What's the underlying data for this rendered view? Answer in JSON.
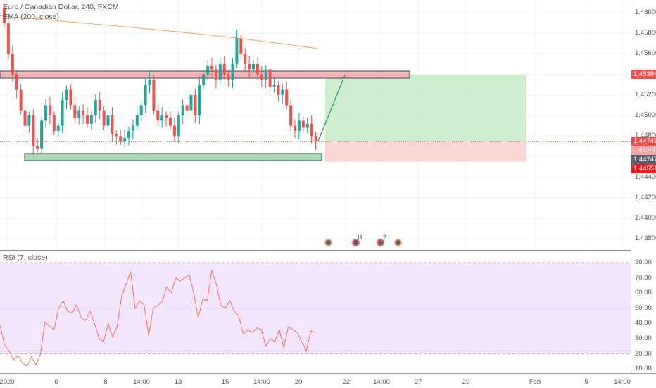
{
  "legend": {
    "title": "Euro / Canadian Dollar, 240, FXCM",
    "ema": "EMA (200, close)",
    "rsi": "RSI (7, close)"
  },
  "price_axis": [
    "1.46000",
    "1.45800",
    "1.45600",
    "1.45200",
    "1.45000",
    "1.44800",
    "1.44400",
    "1.44200",
    "1.44000",
    "1.43800"
  ],
  "price_tags": {
    "target": "1.45394",
    "last": "1.44749",
    "countdown": "49:44",
    "bid": "1.44747",
    "stop": "1.44551"
  },
  "rsi_axis": [
    "80.00",
    "70.00",
    "60.00",
    "50.00",
    "40.00",
    "30.00",
    "20.00",
    "10.00"
  ],
  "time_axis": [
    "2020",
    "6",
    "8",
    "14:00",
    "13",
    "15",
    "14:00",
    "20",
    "22",
    "14:00",
    "27",
    "29",
    "Feb",
    "5",
    "14:00"
  ],
  "events": [
    {
      "icon": "dividend-icon"
    },
    {
      "icon": "calendar-event-icon",
      "badge": "11"
    },
    {
      "icon": "earnings-icon",
      "badge": "2"
    },
    {
      "icon": "event-icon"
    }
  ],
  "colors": {
    "up": "#26a69a",
    "down": "#ef5350",
    "ema": "#f7a35c",
    "rsi": "#f7725c",
    "rsi_band": "#f3e5fd",
    "profit": "#c8ecc8",
    "loss": "#fcd0d0"
  },
  "chart_data": {
    "type": "candlestick",
    "symbol": "EURCAD",
    "interval": "240",
    "ylim": [
      1.437,
      1.461
    ],
    "closes": [
      1.459,
      1.456,
      1.454,
      1.4525,
      1.4505,
      1.449,
      1.45,
      1.447,
      1.4468,
      1.4495,
      1.451,
      1.45,
      1.4485,
      1.449,
      1.4515,
      1.4525,
      1.451,
      1.4498,
      1.4505,
      1.45,
      1.4492,
      1.45,
      1.4515,
      1.4505,
      1.449,
      1.45,
      1.4482,
      1.448,
      1.4475,
      1.4478,
      1.4485,
      1.449,
      1.45,
      1.451,
      1.453,
      1.4535,
      1.4505,
      1.4495,
      1.45,
      1.4498,
      1.449,
      1.448,
      1.45,
      1.451,
      1.4505,
      1.452,
      1.45,
      1.453,
      1.454,
      1.4548,
      1.4545,
      1.4535,
      1.455,
      1.454,
      1.4535,
      1.455,
      1.4575,
      1.456,
      1.455,
      1.4545,
      1.455,
      1.454,
      1.4535,
      1.4545,
      1.4528,
      1.453,
      1.452,
      1.4525,
      1.451,
      1.449,
      1.4485,
      1.4495,
      1.4488,
      1.4492,
      1.448,
      1.4475
    ],
    "rsi": [
      39,
      26,
      22,
      16,
      19,
      14,
      12,
      18,
      13,
      20,
      41,
      38,
      36,
      50,
      55,
      48,
      47,
      52,
      44,
      42,
      48,
      40,
      30,
      28,
      40,
      31,
      38,
      58,
      66,
      74,
      50,
      55,
      52,
      32,
      50,
      52,
      54,
      64,
      60,
      70,
      68,
      70,
      72,
      60,
      44,
      56,
      55,
      75,
      66,
      52,
      50,
      55,
      48,
      45,
      33,
      36,
      34,
      37,
      36,
      25,
      30,
      28,
      36,
      24,
      38,
      36,
      34,
      28,
      22,
      35,
      34
    ],
    "ema": [
      1.4595,
      1.459,
      1.4585,
      1.4581,
      1.4577,
      1.4574,
      1.4571,
      1.4568,
      1.4566,
      1.4565
    ]
  }
}
